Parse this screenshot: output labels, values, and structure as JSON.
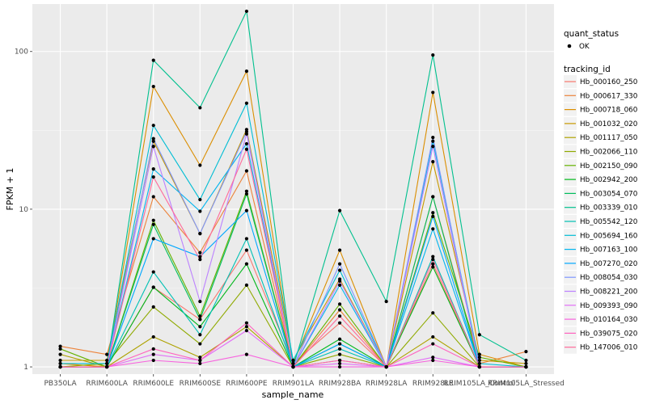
{
  "chart_data": {
    "type": "line",
    "xlabel": "sample_name",
    "ylabel": "FPKM + 1",
    "y_scale": "log10",
    "ylim": [
      0.9,
      200
    ],
    "y_ticks": [
      1,
      10,
      100
    ],
    "y_tick_labels": [
      "1",
      "10",
      "100"
    ],
    "grid": true,
    "legend_position": "right",
    "categories": [
      "PB350LA",
      "RRIM600LA",
      "RRIM600LE",
      "RRIM600SE",
      "RRIM600PE",
      "RRIM901LA",
      "RRIM928BA",
      "RRIM928LA",
      "RRIM928LE",
      "RRIM105LA_Control",
      "RRIM105LA_Stressed"
    ],
    "quant_status": {
      "title": "quant_status",
      "entries": [
        "OK"
      ]
    },
    "series_legend_title": "tracking_id",
    "series": [
      {
        "name": "Hb_000160_250",
        "color": "#F8766D",
        "values": [
          1.0,
          1.0,
          3.2,
          2.0,
          5.5,
          1.05,
          1.9,
          1.0,
          4.5,
          1.0,
          1.0
        ]
      },
      {
        "name": "Hb_000617_330",
        "color": "#EC8239",
        "values": [
          1.35,
          1.2,
          12.0,
          5.3,
          17.5,
          1.0,
          2.3,
          1.0,
          12.0,
          1.05,
          1.25
        ]
      },
      {
        "name": "Hb_000718_060",
        "color": "#DB8E00",
        "values": [
          1.05,
          1.0,
          60.0,
          19.0,
          75.0,
          1.05,
          5.5,
          1.0,
          55.0,
          1.2,
          1.0
        ]
      },
      {
        "name": "Hb_001032_020",
        "color": "#C79800",
        "values": [
          1.1,
          1.1,
          27.0,
          7.0,
          32.0,
          1.1,
          3.6,
          1.0,
          20.0,
          1.1,
          1.05
        ]
      },
      {
        "name": "Hb_001117_050",
        "color": "#AEA200",
        "values": [
          1.2,
          1.0,
          1.55,
          1.15,
          1.8,
          1.0,
          1.1,
          1.0,
          1.55,
          1.0,
          1.0
        ]
      },
      {
        "name": "Hb_002066_110",
        "color": "#8FAA00",
        "values": [
          1.0,
          1.05,
          2.4,
          1.4,
          3.3,
          1.0,
          1.2,
          1.0,
          2.2,
          1.0,
          1.0
        ]
      },
      {
        "name": "Hb_002150_090",
        "color": "#64B200",
        "values": [
          1.3,
          1.0,
          8.5,
          2.1,
          13.0,
          1.0,
          2.5,
          1.0,
          9.5,
          1.15,
          1.0
        ]
      },
      {
        "name": "Hb_002942_200",
        "color": "#00B81B",
        "values": [
          1.0,
          1.0,
          3.2,
          1.8,
          4.5,
          1.0,
          1.5,
          1.0,
          4.3,
          1.0,
          1.0
        ]
      },
      {
        "name": "Hb_003054_070",
        "color": "#00BD5C",
        "values": [
          1.0,
          1.0,
          8.0,
          2.0,
          12.5,
          1.0,
          1.4,
          1.0,
          12.0,
          1.0,
          1.0
        ]
      },
      {
        "name": "Hb_003339_010",
        "color": "#00C08E",
        "values": [
          1.0,
          1.0,
          88.0,
          44.0,
          180.0,
          1.0,
          9.8,
          2.6,
          95.0,
          1.6,
          1.1
        ]
      },
      {
        "name": "Hb_005542_120",
        "color": "#00C1B4",
        "values": [
          1.0,
          1.0,
          4.0,
          1.6,
          6.5,
          1.0,
          1.3,
          1.0,
          5.0,
          1.0,
          1.0
        ]
      },
      {
        "name": "Hb_005694_160",
        "color": "#00BDD4",
        "values": [
          1.05,
          1.05,
          34.0,
          11.5,
          47.0,
          1.1,
          4.1,
          1.0,
          27.0,
          1.05,
          1.0
        ]
      },
      {
        "name": "Hb_007163_100",
        "color": "#00B5EE",
        "values": [
          1.0,
          1.0,
          18.0,
          9.7,
          26.0,
          1.0,
          3.3,
          1.0,
          7.5,
          1.0,
          1.0
        ]
      },
      {
        "name": "Hb_007270_020",
        "color": "#00A7FF",
        "values": [
          1.0,
          1.0,
          6.5,
          5.0,
          9.8,
          1.0,
          1.4,
          1.0,
          9.0,
          1.0,
          1.0
        ]
      },
      {
        "name": "Hb_008054_030",
        "color": "#7F96FF",
        "values": [
          1.0,
          1.0,
          28.0,
          7.0,
          31.0,
          1.0,
          4.5,
          1.0,
          28.5,
          1.0,
          1.0
        ]
      },
      {
        "name": "Hb_008221_200",
        "color": "#BC81FF",
        "values": [
          1.0,
          1.0,
          25.0,
          2.6,
          30.0,
          1.0,
          3.5,
          1.0,
          25.0,
          1.0,
          1.0
        ]
      },
      {
        "name": "Hb_009393_090",
        "color": "#E26EF7",
        "values": [
          1.0,
          1.0,
          1.2,
          1.1,
          1.7,
          1.0,
          1.05,
          1.0,
          1.15,
          1.0,
          1.0
        ]
      },
      {
        "name": "Hb_010164_030",
        "color": "#F863DF",
        "values": [
          1.0,
          1.0,
          1.1,
          1.05,
          1.2,
          1.0,
          1.0,
          1.0,
          1.1,
          1.0,
          1.0
        ]
      },
      {
        "name": "Hb_039075_020",
        "color": "#FF62BF",
        "values": [
          1.0,
          1.0,
          1.3,
          1.1,
          1.9,
          1.0,
          1.1,
          1.0,
          1.4,
          1.0,
          1.0
        ]
      },
      {
        "name": "Hb_147006_010",
        "color": "#FF6A9A",
        "values": [
          1.0,
          1.0,
          16.0,
          4.8,
          24.0,
          1.0,
          2.1,
          1.0,
          4.8,
          1.0,
          1.0
        ]
      }
    ]
  }
}
